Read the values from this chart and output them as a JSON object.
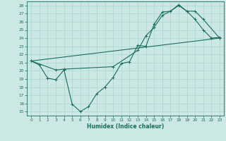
{
  "xlabel": "Humidex (Indice chaleur)",
  "ylabel": "",
  "bg_color": "#cce8e5",
  "grid_color": "#b0d8d4",
  "line_color": "#1a6b60",
  "xlim": [
    -0.5,
    23.5
  ],
  "ylim": [
    14.5,
    28.5
  ],
  "xticks": [
    0,
    1,
    2,
    3,
    4,
    5,
    6,
    7,
    8,
    9,
    10,
    11,
    12,
    13,
    14,
    15,
    16,
    17,
    18,
    19,
    20,
    21,
    22,
    23
  ],
  "yticks": [
    15,
    16,
    17,
    18,
    19,
    20,
    21,
    22,
    23,
    24,
    25,
    26,
    27,
    28
  ],
  "line1_x": [
    0,
    1,
    2,
    3,
    4,
    5,
    6,
    7,
    8,
    9,
    10,
    11,
    12,
    13,
    14,
    15,
    16,
    17,
    18,
    19,
    20,
    21,
    22,
    23
  ],
  "line1_y": [
    21.2,
    20.7,
    19.1,
    18.9,
    20.1,
    15.9,
    15.0,
    15.6,
    17.2,
    18.0,
    19.2,
    20.9,
    21.1,
    23.1,
    23.0,
    25.7,
    27.2,
    27.3,
    28.1,
    27.3,
    26.3,
    25.0,
    24.0,
    24.1
  ],
  "line2_x": [
    0,
    3,
    4,
    10,
    13,
    14,
    15,
    16,
    17,
    18,
    19,
    20,
    21,
    23
  ],
  "line2_y": [
    21.2,
    20.1,
    20.2,
    20.5,
    22.5,
    24.3,
    25.3,
    26.8,
    27.3,
    28.0,
    27.3,
    27.3,
    26.3,
    24.0
  ],
  "line3_x": [
    0,
    23
  ],
  "line3_y": [
    21.2,
    24.0
  ]
}
